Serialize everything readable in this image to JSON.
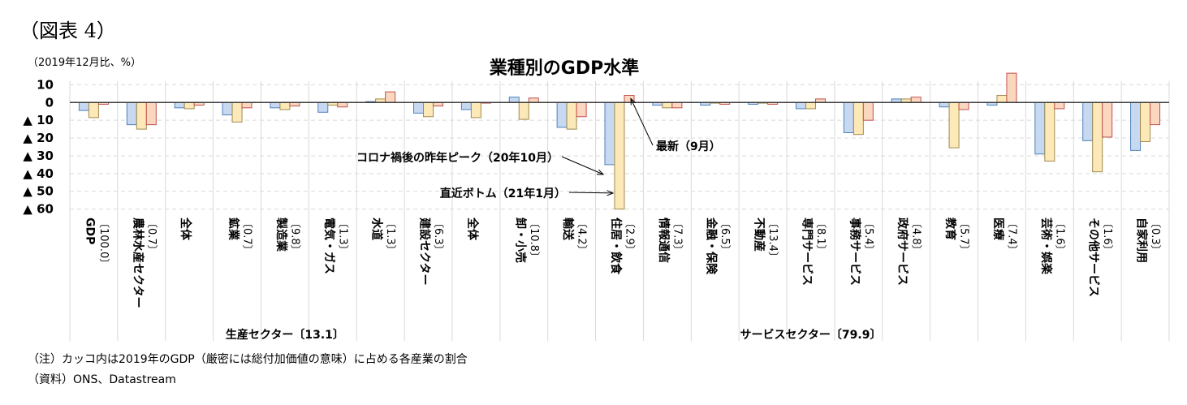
{
  "figure_label": "（図表 4）",
  "unit_note": "（2019年12月比、%）",
  "footnotes": {
    "note": "（注）カッコ内は2019年のGDP（厳密には総付加価値の意味）に占める各産業の割合",
    "source": "（資料）ONS、Datastream"
  },
  "chart_data": {
    "type": "bar",
    "title": "業種別のGDP水準",
    "ylim": [
      -62,
      12
    ],
    "y_ticks": [
      10,
      0,
      -10,
      -20,
      -30,
      -40,
      -50,
      -60
    ],
    "y_tick_labels": [
      "10",
      "0",
      "▲ 10",
      "▲ 20",
      "▲ 30",
      "▲ 40",
      "▲ 50",
      "▲ 60"
    ],
    "grid": true,
    "categories": [
      {
        "label": "GDP",
        "weight": "〔100.0〕"
      },
      {
        "label": "農林水産セクター",
        "weight": "〔0.7〕"
      },
      {
        "label": "全体",
        "weight": ""
      },
      {
        "label": "鉱業",
        "weight": "〔0.7〕"
      },
      {
        "label": "製造業",
        "weight": "〔9.8〕"
      },
      {
        "label": "電気・ガス",
        "weight": "〔1.3〕"
      },
      {
        "label": "水道",
        "weight": "〔1.3〕"
      },
      {
        "label": "建設セクター",
        "weight": "〔6.3〕"
      },
      {
        "label": "全体",
        "weight": ""
      },
      {
        "label": "卸・小売",
        "weight": "〔10.8〕"
      },
      {
        "label": "輸送",
        "weight": "〔4.2〕"
      },
      {
        "label": "住居・飲食",
        "weight": "〔2.9〕"
      },
      {
        "label": "情報通信",
        "weight": "〔7.3〕"
      },
      {
        "label": "金融・保険",
        "weight": "〔6.5〕"
      },
      {
        "label": "不動産",
        "weight": "〔13.4〕"
      },
      {
        "label": "専門サービス",
        "weight": "〔8.1〕"
      },
      {
        "label": "事務サービス",
        "weight": "〔5.4〕"
      },
      {
        "label": "政府サービス",
        "weight": "〔4.8〕"
      },
      {
        "label": "教育",
        "weight": "〔5.7〕"
      },
      {
        "label": "医療",
        "weight": "〔7.4〕"
      },
      {
        "label": "芸術・娯楽",
        "weight": "〔1.6〕"
      },
      {
        "label": "その他サービス",
        "weight": "〔1.6〕"
      },
      {
        "label": "自家利用",
        "weight": "〔0.3〕"
      }
    ],
    "series": [
      {
        "color": "#c6d9f1",
        "stroke": "#4f81bd",
        "values": [
          -4.5,
          -12.5,
          -3.0,
          -7.0,
          -3.0,
          -5.5,
          0.5,
          -6.0,
          -4.0,
          3.0,
          -14.0,
          -35.0,
          -1.5,
          -1.5,
          -1.0,
          -3.5,
          -17.0,
          2.0,
          -2.5,
          -1.5,
          -29.0,
          -21.5,
          -27.0
        ]
      },
      {
        "color": "#fde9b7",
        "stroke": "#a08a50",
        "values": [
          -8.5,
          -15.0,
          -3.5,
          -11.0,
          -4.0,
          -1.5,
          2.0,
          -8.0,
          -8.5,
          -9.5,
          -15.0,
          -60.0,
          -3.0,
          0.0,
          0.0,
          -3.5,
          -18.0,
          2.0,
          -25.5,
          4.0,
          -33.0,
          -39.0,
          -22.0
        ]
      },
      {
        "color": "#fbd7c0",
        "stroke": "#c0504d",
        "values": [
          -1.0,
          -12.5,
          -1.5,
          -3.0,
          -2.0,
          -2.5,
          6.0,
          -2.0,
          0.0,
          2.5,
          -8.0,
          4.0,
          -3.0,
          -1.0,
          -1.0,
          2.0,
          -10.0,
          3.0,
          -4.0,
          16.5,
          -3.5,
          -19.5,
          -12.5
        ]
      }
    ],
    "groups": [
      {
        "label": "生産セクター〔13.1〕",
        "from": 2,
        "to": 6
      },
      {
        "label": "サービスセクター〔79.9〕",
        "from": 8,
        "to": 22
      }
    ],
    "annotations": [
      {
        "text": "コロナ禍後の昨年ピーク（20年10月）",
        "target": {
          "category": 11,
          "series": 0
        }
      },
      {
        "text": "直近ボトム（21年1月）",
        "target": {
          "category": 11,
          "series": 1
        }
      },
      {
        "text": "最新（9月）",
        "target": {
          "category": 11,
          "series": 2
        }
      }
    ]
  }
}
